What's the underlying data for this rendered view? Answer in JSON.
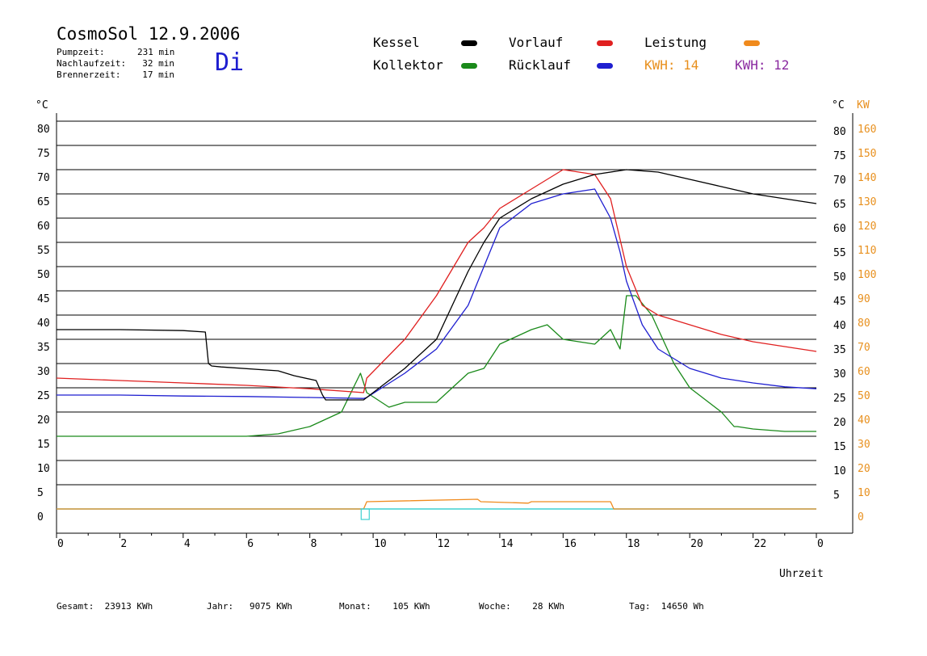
{
  "header": {
    "title": "CosmoSol 12.9.2006",
    "day": "Di",
    "stats": [
      {
        "label": "Pumpzeit:",
        "value": "231 min"
      },
      {
        "label": "Nachlaufzeit:",
        "value": "32 min"
      },
      {
        "label": "Brennerzeit:",
        "value": "17 min"
      }
    ]
  },
  "legend": {
    "kessel": {
      "label": "Kessel",
      "color": "#000000"
    },
    "vorlauf": {
      "label": "Vorlauf",
      "color": "#e02020"
    },
    "leistung": {
      "label": "Leistung",
      "color": "#f08a1c"
    },
    "kollektor": {
      "label": "Kollektor",
      "color": "#1a8a1a"
    },
    "ruecklauf": {
      "label": "Rücklauf",
      "color": "#1f1fd0"
    },
    "kwh1": {
      "label": "KWH:",
      "value": "14",
      "color": "#e8901e"
    },
    "kwh2": {
      "label": "KWH:",
      "value": "12",
      "color": "#8a2aa0"
    }
  },
  "footer": [
    {
      "label": "Gesamt:",
      "value": "23913 KWh"
    },
    {
      "label": "Jahr:",
      "value": "9075 KWh"
    },
    {
      "label": "Monat:",
      "value": "105 KWh"
    },
    {
      "label": "Woche:",
      "value": "28 KWh"
    },
    {
      "label": "Tag:",
      "value": "14650 Wh"
    }
  ],
  "chart_data": {
    "type": "line",
    "xlabel": "Uhrzeit",
    "ylabel_left": "°C",
    "ylabel_right_temp": "°C",
    "ylabel_right_power": "KW",
    "xlim": [
      0,
      24
    ],
    "ylim": [
      0,
      80
    ],
    "x_ticks": [
      "0",
      "2",
      "4",
      "6",
      "8",
      "10",
      "12",
      "14",
      "16",
      "18",
      "20",
      "22",
      "0"
    ],
    "y_ticks_left": [
      "0",
      "5",
      "10",
      "15",
      "20",
      "25",
      "30",
      "35",
      "40",
      "45",
      "50",
      "55",
      "60",
      "65",
      "70",
      "75",
      "80"
    ],
    "y_ticks_right_temp": [
      "5",
      "10",
      "15",
      "20",
      "25",
      "30",
      "35",
      "40",
      "45",
      "50",
      "55",
      "60",
      "65",
      "70",
      "75",
      "80"
    ],
    "y_ticks_right_power": [
      "0",
      "10",
      "20",
      "30",
      "40",
      "50",
      "60",
      "70",
      "80",
      "90",
      "100",
      "110",
      "120",
      "130",
      "140",
      "150",
      "160"
    ],
    "grid": true,
    "series": [
      {
        "name": "Kessel",
        "color": "#000000",
        "x": [
          0,
          2,
          4,
          4.7,
          4.8,
          4.9,
          5.2,
          7,
          7.5,
          8.2,
          8.4,
          8.5,
          9.7,
          9.8,
          11,
          12,
          13,
          13.5,
          14,
          15,
          16,
          17,
          18,
          19,
          20,
          21,
          22,
          23,
          24
        ],
        "y": [
          37,
          37,
          36.8,
          36.5,
          30,
          29.5,
          29.3,
          28.5,
          27.5,
          26.5,
          23.5,
          22.5,
          22.5,
          23,
          29,
          35,
          49,
          55,
          60,
          64,
          67,
          69,
          70,
          69.5,
          68,
          66.5,
          65,
          64,
          63
        ]
      },
      {
        "name": "Vorlauf",
        "color": "#e02020",
        "x": [
          0,
          2,
          4,
          6,
          8,
          9.7,
          9.8,
          11,
          12,
          13,
          13.5,
          14,
          15,
          15.5,
          16,
          17,
          17.5,
          18,
          18.5,
          19,
          20,
          21,
          22,
          23,
          24
        ],
        "y": [
          27,
          26.5,
          26,
          25.5,
          24.8,
          24,
          27,
          35,
          44,
          55,
          58,
          62,
          66,
          68,
          70,
          69,
          64,
          50,
          42,
          40,
          38,
          36,
          34.5,
          33.5,
          32.5
        ]
      },
      {
        "name": "Rücklauf",
        "color": "#1f1fd0",
        "x": [
          0,
          2,
          4,
          6,
          8,
          9.7,
          9.8,
          11,
          12,
          13,
          13.5,
          14,
          15,
          16,
          17,
          17.5,
          17.8,
          18,
          18.5,
          19,
          20,
          21,
          22,
          23,
          24
        ],
        "y": [
          23.5,
          23.5,
          23.3,
          23.2,
          23,
          22.8,
          23,
          28,
          33,
          42,
          50,
          58,
          63,
          65,
          66,
          60,
          53,
          47,
          38,
          33,
          29,
          27,
          26,
          25.2,
          24.8
        ]
      },
      {
        "name": "Kollektor",
        "color": "#1a8a1a",
        "x": [
          0,
          2,
          4,
          6,
          7,
          8,
          9,
          9.6,
          9.8,
          10.5,
          11,
          12,
          13,
          13.5,
          14,
          15,
          15.5,
          16,
          17,
          17.5,
          17.8,
          18,
          18.3,
          18.8,
          19.5,
          20,
          21,
          21.4,
          21.5,
          22,
          23,
          24
        ],
        "y": [
          15,
          15,
          15,
          15,
          15.5,
          17,
          20,
          28,
          24,
          21,
          22,
          22,
          28,
          29,
          34,
          37,
          38,
          35,
          34,
          37,
          33,
          44,
          44,
          40,
          30,
          25,
          20,
          17,
          17,
          16.5,
          16,
          16
        ]
      },
      {
        "name": "Leistung",
        "color": "#f08a1c",
        "x": [
          0,
          9.7,
          9.8,
          13.3,
          13.4,
          14.9,
          15,
          17.5,
          17.6,
          24
        ],
        "y": [
          0,
          0,
          1.5,
          2,
          1.5,
          1.2,
          1.5,
          1.5,
          0,
          0
        ]
      }
    ]
  }
}
